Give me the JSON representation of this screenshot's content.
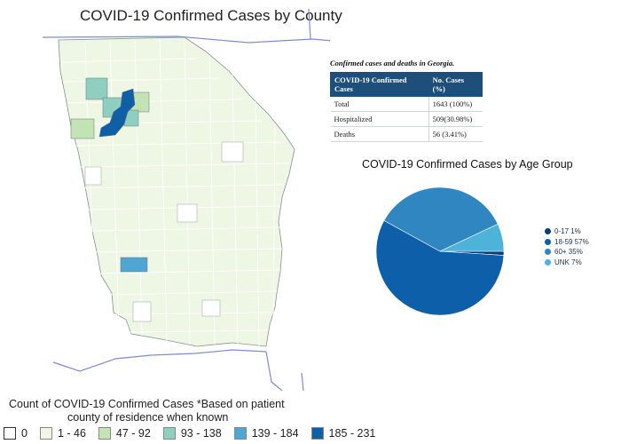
{
  "map": {
    "title": "COVID-19 Confirmed Cases by County",
    "legend_title_line1": "Count of COVID-19 Confirmed Cases *Based on patient",
    "legend_title_line2": "county of residence when known",
    "bins": [
      {
        "label": "0",
        "color": "#ffffff"
      },
      {
        "label": "1 - 46",
        "color": "#eef6e4"
      },
      {
        "label": "47 - 92",
        "color": "#c2e3b4"
      },
      {
        "label": "93 - 138",
        "color": "#8fcfc0"
      },
      {
        "label": "139 - 184",
        "color": "#4fa6d2"
      },
      {
        "label": "185 - 231",
        "color": "#0e5fa6"
      }
    ]
  },
  "table": {
    "caption": "Confirmed cases and deaths in Georgia.",
    "headers": [
      "COVID-19 Confirmed Cases",
      "No. Cases (%)"
    ],
    "rows": [
      [
        "Total",
        "1643 (100%)"
      ],
      [
        "Hospitalized",
        "509(30.98%)"
      ],
      [
        "Deaths",
        "56 (3.41%)"
      ]
    ]
  },
  "chart_data": {
    "type": "pie",
    "title": "COVID-19 Confirmed Cases by Age Group",
    "legend_position": "right",
    "slices": [
      {
        "label": "0-17 1%",
        "value": 1,
        "color": "#0d3b73"
      },
      {
        "label": "18-59 57%",
        "value": 57,
        "color": "#0c5fa8"
      },
      {
        "label": "60+ 35%",
        "value": 35,
        "color": "#2f86c0"
      },
      {
        "label": "UNK 7%",
        "value": 7,
        "color": "#4db3d8"
      }
    ]
  }
}
